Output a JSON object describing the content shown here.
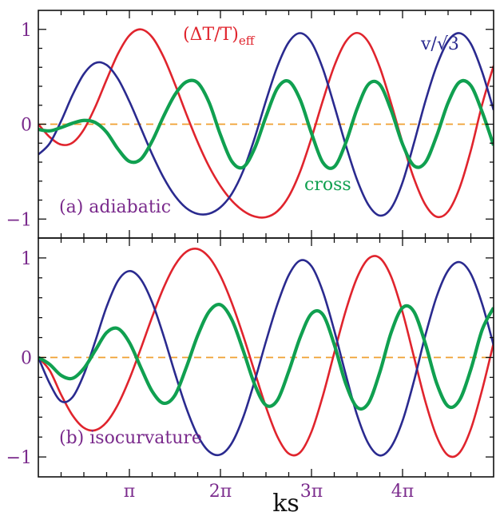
{
  "chart_data": [
    {
      "type": "line",
      "panel": "a",
      "annotation": "(a) adiabatic",
      "xlim": [
        0,
        5.0
      ],
      "ylim": [
        -1.2,
        1.2
      ],
      "yticks": [
        -1,
        0,
        1
      ],
      "ytick_labels": [
        "−1",
        "0",
        "1"
      ],
      "series": [
        {
          "name": "(ΔT/T)eff",
          "label_main": "(ΔT/T)",
          "label_sub": "eff",
          "color": "#e0242d",
          "x": [
            0.0,
            0.125,
            0.25,
            0.375,
            0.5,
            0.625,
            0.75,
            0.875,
            1.0,
            1.125,
            1.25,
            1.375,
            1.5,
            1.625,
            1.75,
            1.875,
            2.0,
            2.125,
            2.25,
            2.375,
            2.5,
            2.625,
            2.75,
            2.875,
            3.0,
            3.125,
            3.25,
            3.375,
            3.5,
            3.625,
            3.75,
            3.875,
            4.0,
            4.125,
            4.25,
            4.375,
            4.5,
            4.625,
            4.75,
            4.875,
            5.0
          ],
          "y": [
            0.0,
            -0.136,
            -0.215,
            -0.195,
            -0.056,
            0.182,
            0.47,
            0.743,
            0.936,
            1.0,
            0.918,
            0.71,
            0.423,
            0.108,
            -0.189,
            -0.446,
            -0.651,
            -0.806,
            -0.913,
            -0.973,
            -0.98,
            -0.918,
            -0.762,
            -0.5,
            -0.145,
            0.25,
            0.613,
            0.868,
            0.962,
            0.866,
            0.6,
            0.219,
            -0.196,
            -0.571,
            -0.848,
            -0.976,
            -0.92,
            -0.675,
            -0.277,
            0.21,
            0.616
          ]
        },
        {
          "name": "v/√3",
          "label": "v/√3",
          "color": "#2a2a8f",
          "x": [
            0.0,
            0.125,
            0.25,
            0.375,
            0.5,
            0.625,
            0.75,
            0.875,
            1.0,
            1.125,
            1.25,
            1.375,
            1.5,
            1.625,
            1.75,
            1.875,
            2.0,
            2.125,
            2.25,
            2.375,
            2.5,
            2.625,
            2.75,
            2.875,
            3.0,
            3.125,
            3.25,
            3.375,
            3.5,
            3.625,
            3.75,
            3.875,
            4.0,
            4.125,
            4.25,
            4.375,
            4.5,
            4.625,
            4.75,
            4.875,
            5.0
          ],
          "y": [
            -0.32,
            -0.202,
            0.033,
            0.307,
            0.53,
            0.645,
            0.625,
            0.478,
            0.24,
            -0.038,
            -0.316,
            -0.562,
            -0.755,
            -0.884,
            -0.945,
            -0.943,
            -0.876,
            -0.733,
            -0.491,
            -0.148,
            0.247,
            0.608,
            0.864,
            0.96,
            0.862,
            0.585,
            0.196,
            -0.216,
            -0.585,
            -0.85,
            -0.963,
            -0.885,
            -0.613,
            -0.2,
            0.24,
            0.615,
            0.876,
            0.96,
            0.848,
            0.549,
            0.149
          ]
        },
        {
          "name": "cross",
          "label": "cross",
          "color": "#10a050",
          "x": [
            0.0,
            0.125,
            0.25,
            0.375,
            0.5,
            0.625,
            0.75,
            0.875,
            1.0,
            1.125,
            1.25,
            1.375,
            1.5,
            1.625,
            1.75,
            1.875,
            2.0,
            2.125,
            2.25,
            2.375,
            2.5,
            2.625,
            2.75,
            2.875,
            3.0,
            3.125,
            3.25,
            3.375,
            3.5,
            3.625,
            3.75,
            3.875,
            4.0,
            4.125,
            4.25,
            4.375,
            4.5,
            4.625,
            4.75,
            4.875,
            5.0
          ],
          "y": [
            -0.055,
            -0.07,
            -0.035,
            0.01,
            0.04,
            0.018,
            -0.085,
            -0.262,
            -0.392,
            -0.369,
            -0.178,
            0.082,
            0.311,
            0.446,
            0.437,
            0.23,
            -0.112,
            -0.392,
            -0.453,
            -0.256,
            0.08,
            0.378,
            0.452,
            0.26,
            -0.095,
            -0.404,
            -0.449,
            -0.2,
            0.16,
            0.42,
            0.418,
            0.146,
            -0.21,
            -0.438,
            -0.403,
            -0.122,
            0.226,
            0.444,
            0.407,
            0.127,
            -0.223
          ]
        }
      ],
      "reference_line": {
        "y": 0,
        "color": "#f0a030",
        "style": "dashed"
      }
    },
    {
      "type": "line",
      "panel": "b",
      "annotation": "(b) isocurvature",
      "xlim": [
        0,
        5.0
      ],
      "ylim": [
        -1.2,
        1.2
      ],
      "yticks": [
        -1,
        0,
        1
      ],
      "ytick_labels": [
        "−1",
        "0",
        "1"
      ],
      "xticks": [
        1,
        2,
        3,
        4
      ],
      "xtick_labels": [
        "π",
        "2π",
        "3π",
        "4π"
      ],
      "xlabel": "ks",
      "series": [
        {
          "name": "(ΔT/T)eff",
          "color": "#e0242d",
          "x": [
            0.0,
            0.125,
            0.25,
            0.375,
            0.5,
            0.625,
            0.75,
            0.875,
            1.0,
            1.125,
            1.25,
            1.375,
            1.5,
            1.625,
            1.75,
            1.875,
            2.0,
            2.125,
            2.25,
            2.375,
            2.5,
            2.625,
            2.75,
            2.875,
            3.0,
            3.125,
            3.25,
            3.375,
            3.5,
            3.625,
            3.75,
            3.875,
            4.0,
            4.125,
            4.25,
            4.375,
            4.5,
            4.625,
            4.75,
            4.875,
            5.0
          ],
          "y": [
            0.0,
            -0.131,
            -0.374,
            -0.581,
            -0.707,
            -0.731,
            -0.65,
            -0.472,
            -0.217,
            0.088,
            0.406,
            0.699,
            0.927,
            1.062,
            1.09,
            1.007,
            0.819,
            0.547,
            0.218,
            -0.143,
            -0.498,
            -0.795,
            -0.966,
            -0.955,
            -0.746,
            -0.385,
            0.046,
            0.466,
            0.8,
            0.992,
            1.0,
            0.812,
            0.455,
            0.007,
            -0.441,
            -0.795,
            -0.984,
            -0.958,
            -0.72,
            -0.322,
            0.145
          ]
        },
        {
          "name": "v/√3",
          "color": "#2a2a8f",
          "x": [
            0.0,
            0.125,
            0.25,
            0.375,
            0.5,
            0.625,
            0.75,
            0.875,
            1.0,
            1.125,
            1.25,
            1.375,
            1.5,
            1.625,
            1.75,
            1.875,
            2.0,
            2.125,
            2.25,
            2.375,
            2.5,
            2.625,
            2.75,
            2.875,
            3.0,
            3.125,
            3.25,
            3.375,
            3.5,
            3.625,
            3.75,
            3.875,
            4.0,
            4.125,
            4.25,
            4.375,
            4.5,
            4.625,
            4.75,
            4.875,
            5.0
          ],
          "y": [
            0.0,
            -0.262,
            -0.44,
            -0.4,
            -0.171,
            0.162,
            0.51,
            0.771,
            0.868,
            0.786,
            0.554,
            0.219,
            -0.157,
            -0.508,
            -0.784,
            -0.945,
            -0.976,
            -0.86,
            -0.601,
            -0.24,
            0.161,
            0.533,
            0.827,
            0.974,
            0.917,
            0.661,
            0.271,
            -0.167,
            -0.577,
            -0.866,
            -0.985,
            -0.898,
            -0.637,
            -0.238,
            0.22,
            0.613,
            0.873,
            0.958,
            0.84,
            0.536,
            0.122
          ]
        },
        {
          "name": "cross",
          "color": "#10a050",
          "x": [
            0.0,
            0.125,
            0.25,
            0.375,
            0.5,
            0.625,
            0.75,
            0.875,
            1.0,
            1.125,
            1.25,
            1.375,
            1.5,
            1.625,
            1.75,
            1.875,
            2.0,
            2.125,
            2.25,
            2.375,
            2.5,
            2.625,
            2.75,
            2.875,
            3.0,
            3.125,
            3.25,
            3.375,
            3.5,
            3.625,
            3.75,
            3.875,
            4.0,
            4.125,
            4.25,
            4.375,
            4.5,
            4.625,
            4.75,
            4.875,
            5.0
          ],
          "y": [
            0.0,
            -0.07,
            -0.18,
            -0.21,
            -0.11,
            0.07,
            0.25,
            0.29,
            0.15,
            -0.1,
            -0.34,
            -0.46,
            -0.38,
            -0.1,
            0.22,
            0.46,
            0.53,
            0.38,
            0.07,
            -0.27,
            -0.48,
            -0.43,
            -0.14,
            0.2,
            0.44,
            0.43,
            0.13,
            -0.26,
            -0.5,
            -0.46,
            -0.15,
            0.25,
            0.5,
            0.46,
            0.14,
            -0.26,
            -0.49,
            -0.43,
            -0.12,
            0.28,
            0.5
          ]
        }
      ],
      "reference_line": {
        "y": 0,
        "color": "#f0a030",
        "style": "dashed"
      }
    }
  ]
}
